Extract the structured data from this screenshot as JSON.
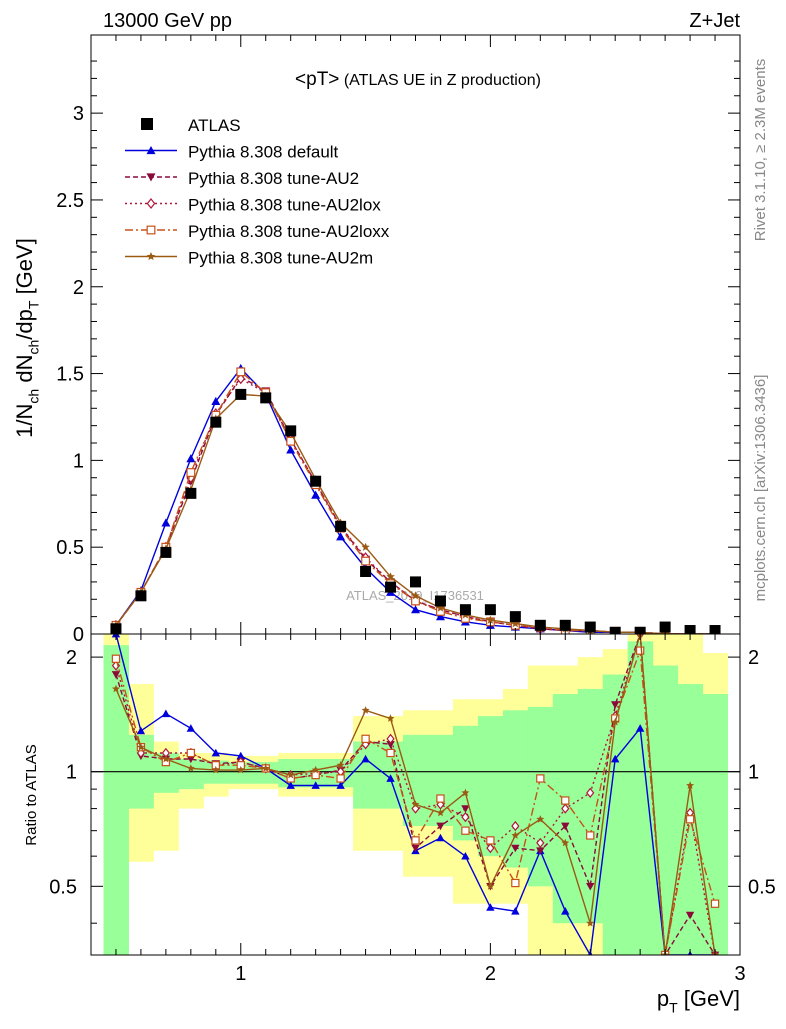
{
  "header": {
    "left": "13000 GeV pp",
    "right": "Z+Jet"
  },
  "side_labels": {
    "rivet": "Rivet 3.1.10, ≥ 2.3M events",
    "mcplots": "mcplots.cern.ch [arXiv:1306.3436]"
  },
  "watermark": "ATLAS_2019_I1736531",
  "chart_data": [
    {
      "type": "line",
      "title_main": "<pT>",
      "title_sub": " (ATLAS UE in Z production)",
      "ylabel": "1/N_ch dN_ch/dp_T [GeV]",
      "xlim": [
        0.4,
        3.0
      ],
      "ylim": [
        0,
        3.45
      ],
      "yticks": [
        {
          "v": 0,
          "label": "0"
        },
        {
          "v": 0.5,
          "label": "0.5"
        },
        {
          "v": 1,
          "label": "1"
        },
        {
          "v": 1.5,
          "label": "1.5"
        },
        {
          "v": 2,
          "label": "2"
        },
        {
          "v": 2.5,
          "label": "2.5"
        },
        {
          "v": 3,
          "label": "3"
        }
      ],
      "x": [
        0.5,
        0.6,
        0.7,
        0.8,
        0.9,
        1.0,
        1.1,
        1.2,
        1.3,
        1.4,
        1.5,
        1.6,
        1.7,
        1.8,
        1.9,
        2.0,
        2.1,
        2.2,
        2.3,
        2.4,
        2.5,
        2.6,
        2.7,
        2.8,
        2.9
      ],
      "data_series": {
        "name": "ATLAS",
        "color": "#000000",
        "values": [
          0.03,
          0.22,
          0.47,
          0.81,
          1.22,
          1.38,
          1.36,
          1.17,
          0.88,
          0.62,
          0.36,
          0.27,
          0.3,
          0.19,
          0.14,
          0.14,
          0.1,
          0.05,
          0.05,
          0.04,
          0.01,
          0.01,
          0.04,
          0.02,
          0.02
        ]
      },
      "series": [
        {
          "name": "Pythia 8.308 default",
          "color": "#0000dd",
          "dash": "",
          "marker": "triangle-up",
          "values": [
            0.05,
            0.25,
            0.64,
            1.01,
            1.34,
            1.53,
            1.38,
            1.06,
            0.8,
            0.56,
            0.38,
            0.24,
            0.14,
            0.1,
            0.07,
            0.05,
            0.04,
            0.03,
            0.02,
            0.01,
            0.01,
            0.01,
            0.0,
            0.0,
            0.0
          ]
        },
        {
          "name": "Pythia 8.308 tune-AU2",
          "color": "#8b0a3a",
          "dash": "5,3",
          "marker": "triangle-down",
          "values": [
            0.05,
            0.24,
            0.5,
            0.88,
            1.26,
            1.48,
            1.4,
            1.12,
            0.87,
            0.62,
            0.43,
            0.3,
            0.19,
            0.14,
            0.1,
            0.07,
            0.05,
            0.03,
            0.02,
            0.02,
            0.01,
            0.01,
            0.0,
            0.0,
            0.0
          ]
        },
        {
          "name": "Pythia 8.308 tune-AU2lox",
          "color": "#b0173c",
          "dash": "2,3",
          "marker": "diamond-open",
          "values": [
            0.05,
            0.24,
            0.5,
            0.9,
            1.27,
            1.47,
            1.39,
            1.12,
            0.87,
            0.62,
            0.44,
            0.3,
            0.19,
            0.14,
            0.1,
            0.07,
            0.05,
            0.03,
            0.02,
            0.02,
            0.01,
            0.01,
            0.0,
            0.0,
            0.0
          ]
        },
        {
          "name": "Pythia 8.308 tune-AU2loxx",
          "color": "#c8501a",
          "dash": "8,3,2,3",
          "marker": "square-open",
          "values": [
            0.05,
            0.24,
            0.5,
            0.93,
            1.26,
            1.51,
            1.39,
            1.11,
            0.86,
            0.61,
            0.42,
            0.29,
            0.19,
            0.13,
            0.09,
            0.07,
            0.05,
            0.04,
            0.02,
            0.02,
            0.01,
            0.01,
            0.0,
            0.0,
            0.0
          ]
        },
        {
          "name": "Pythia 8.308 tune-AU2m",
          "color": "#9b5a14",
          "dash": "",
          "marker": "star",
          "values": [
            0.05,
            0.24,
            0.49,
            0.83,
            1.24,
            1.38,
            1.37,
            1.16,
            0.89,
            0.64,
            0.5,
            0.33,
            0.22,
            0.15,
            0.11,
            0.08,
            0.06,
            0.04,
            0.03,
            0.02,
            0.01,
            0.01,
            0.0,
            0.0,
            0.0
          ]
        }
      ]
    },
    {
      "type": "line",
      "ylabel": "Ratio to ATLAS",
      "xlabel": "p_T [GeV]",
      "xlim": [
        0.4,
        3.0
      ],
      "ylim": [
        0.33,
        2.3
      ],
      "log_y": true,
      "reference_line": 1,
      "xticks": [
        {
          "v": 1,
          "label": "1"
        },
        {
          "v": 2,
          "label": "2"
        },
        {
          "v": 3,
          "label": "3"
        }
      ],
      "yticks": [
        {
          "v": 0.5,
          "label": "0.5"
        },
        {
          "v": 1,
          "label": "1"
        },
        {
          "v": 2,
          "label": "2"
        }
      ],
      "band_yellow": {
        "low": [
          0.33,
          0.58,
          0.62,
          0.8,
          0.86,
          0.9,
          0.9,
          0.86,
          0.86,
          0.86,
          0.62,
          0.62,
          0.53,
          0.53,
          0.45,
          0.45,
          0.45,
          0.33,
          0.33,
          0.33,
          0.33,
          0.33,
          0.33,
          0.33,
          0.33
        ],
        "high": [
          2.3,
          1.7,
          1.2,
          1.12,
          1.12,
          1.1,
          1.1,
          1.12,
          1.12,
          1.12,
          1.4,
          1.4,
          1.45,
          1.45,
          1.55,
          1.55,
          1.65,
          1.9,
          1.9,
          2.0,
          2.1,
          2.3,
          2.3,
          2.3,
          2.05
        ]
      },
      "band_green": {
        "low": [
          0.33,
          0.8,
          0.88,
          0.9,
          0.93,
          0.93,
          0.93,
          0.91,
          0.91,
          0.91,
          0.8,
          0.8,
          0.72,
          0.72,
          0.66,
          0.6,
          0.56,
          0.5,
          0.4,
          0.4,
          0.33,
          0.33,
          0.33,
          0.33,
          0.33
        ],
        "high": [
          2.15,
          1.25,
          1.12,
          1.08,
          1.07,
          1.06,
          1.06,
          1.08,
          1.08,
          1.08,
          1.2,
          1.2,
          1.25,
          1.25,
          1.32,
          1.4,
          1.45,
          1.48,
          1.6,
          1.65,
          1.8,
          2.2,
          1.9,
          1.7,
          1.6
        ]
      },
      "series": [
        {
          "name": "Pythia 8.308 default",
          "color": "#0000dd",
          "dash": "",
          "marker": "triangle-up",
          "values": [
            2.3,
            1.28,
            1.42,
            1.3,
            1.12,
            1.1,
            1.02,
            0.92,
            0.92,
            0.92,
            1.08,
            0.96,
            0.62,
            0.67,
            0.6,
            0.44,
            0.43,
            0.62,
            0.43,
            0.33,
            1.08,
            1.3,
            0.33,
            0.33,
            0.33
          ]
        },
        {
          "name": "Pythia 8.308 tune-AU2",
          "color": "#8b0a3a",
          "dash": "5,3",
          "marker": "triangle-down",
          "values": [
            1.8,
            1.1,
            1.08,
            1.08,
            1.05,
            1.06,
            1.02,
            0.96,
            0.98,
            1.01,
            1.2,
            1.18,
            0.63,
            0.72,
            0.8,
            0.5,
            0.63,
            0.62,
            0.72,
            0.5,
            1.5,
            2.3,
            0.33,
            0.42,
            0.33
          ]
        },
        {
          "name": "Pythia 8.308 tune-AU2lox",
          "color": "#b0173c",
          "dash": "2,3",
          "marker": "diamond-open",
          "values": [
            1.9,
            1.12,
            1.12,
            1.12,
            1.04,
            1.06,
            1.02,
            0.98,
            0.99,
            1.0,
            1.18,
            1.22,
            0.8,
            0.82,
            0.76,
            0.63,
            0.72,
            0.65,
            0.8,
            0.88,
            1.4,
            2.3,
            0.33,
            0.78,
            0.33
          ]
        },
        {
          "name": "Pythia 8.308 tune-AU2loxx",
          "color": "#c8501a",
          "dash": "8,3,2,3",
          "marker": "square-open",
          "values": [
            1.98,
            1.16,
            1.06,
            1.12,
            1.04,
            1.04,
            1.02,
            0.96,
            0.98,
            0.96,
            1.22,
            1.12,
            0.66,
            0.85,
            0.7,
            0.66,
            0.51,
            0.96,
            0.84,
            0.68,
            1.38,
            2.08,
            0.33,
            0.75,
            0.45
          ]
        },
        {
          "name": "Pythia 8.308 tune-AU2m",
          "color": "#9b5a14",
          "dash": "",
          "marker": "star",
          "values": [
            1.65,
            1.16,
            1.08,
            1.02,
            1.01,
            1.01,
            1.02,
            0.98,
            1.01,
            1.04,
            1.45,
            1.38,
            0.82,
            0.78,
            0.88,
            0.5,
            0.68,
            0.75,
            0.65,
            0.4,
            1.35,
            2.3,
            0.33,
            0.92,
            0.33
          ]
        }
      ]
    }
  ]
}
